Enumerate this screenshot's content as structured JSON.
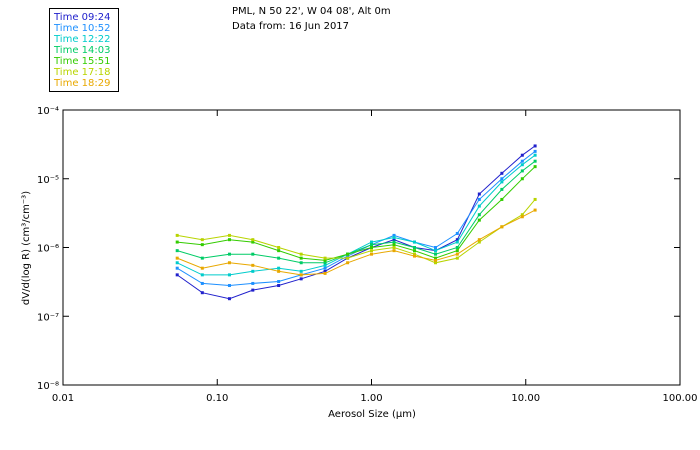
{
  "header": {
    "location": "PML, N 50 22', W 04 08', Alt 0m",
    "date": "Data from: 16 Jun 2017"
  },
  "legend": [
    {
      "label": "Time 09:24",
      "color": "#2020cc"
    },
    {
      "label": "Time 10:52",
      "color": "#1e90ff"
    },
    {
      "label": "Time 12:22",
      "color": "#00cccc"
    },
    {
      "label": "Time 14:03",
      "color": "#00cc66"
    },
    {
      "label": "Time 15:51",
      "color": "#33cc00"
    },
    {
      "label": "Time 17:18",
      "color": "#b8d400"
    },
    {
      "label": "Time 18:29",
      "color": "#e8a800"
    }
  ],
  "chart_data": {
    "type": "line",
    "xscale": "log",
    "yscale": "log",
    "xlim": [
      0.01,
      100
    ],
    "ylim": [
      1e-08,
      0.0001
    ],
    "xlabel": "Aerosol Size (μm)",
    "ylabel": "dV/d(log R) (cm³/cm⁻³)",
    "xticks": [
      {
        "value": 0.01,
        "label": "0.01"
      },
      {
        "value": 0.1,
        "label": "0.10"
      },
      {
        "value": 1,
        "label": "1.00"
      },
      {
        "value": 10,
        "label": "10.00"
      },
      {
        "value": 100,
        "label": "100.00"
      }
    ],
    "yticks": [
      {
        "value": 1e-08,
        "label": "10⁻⁸"
      },
      {
        "value": 1e-07,
        "label": "10⁻⁷"
      },
      {
        "value": 1e-06,
        "label": "10⁻⁶"
      },
      {
        "value": 1e-05,
        "label": "10⁻⁵"
      },
      {
        "value": 0.0001,
        "label": "10⁻⁴"
      }
    ],
    "x": [
      0.055,
      0.08,
      0.12,
      0.17,
      0.25,
      0.35,
      0.5,
      0.7,
      1.0,
      1.4,
      1.9,
      2.6,
      3.6,
      5.0,
      7.0,
      9.5,
      11.5
    ],
    "series": [
      {
        "name": "Time 09:24",
        "color": "#2020cc",
        "values": [
          4e-07,
          2.2e-07,
          1.8e-07,
          2.4e-07,
          2.8e-07,
          3.5e-07,
          4.5e-07,
          7e-07,
          1e-06,
          1.3e-06,
          1e-06,
          9e-07,
          1.3e-06,
          6e-06,
          1.2e-05,
          2.2e-05,
          3e-05
        ]
      },
      {
        "name": "Time 10:52",
        "color": "#1e90ff",
        "values": [
          5e-07,
          3e-07,
          2.8e-07,
          3e-07,
          3.2e-07,
          4e-07,
          5e-07,
          7.5e-07,
          1.1e-06,
          1.5e-06,
          1.2e-06,
          1e-06,
          1.6e-06,
          5e-06,
          1e-05,
          1.8e-05,
          2.5e-05
        ]
      },
      {
        "name": "Time 12:22",
        "color": "#00cccc",
        "values": [
          6e-07,
          4e-07,
          4e-07,
          4.5e-07,
          5e-07,
          4.5e-07,
          5.5e-07,
          8e-07,
          1.2e-06,
          1.4e-06,
          1.2e-06,
          9e-07,
          1.2e-06,
          4e-06,
          9e-06,
          1.6e-05,
          2.2e-05
        ]
      },
      {
        "name": "Time 14:03",
        "color": "#00cc66",
        "values": [
          9e-07,
          7e-07,
          8e-07,
          8e-07,
          7e-07,
          6e-07,
          6e-07,
          8e-07,
          1.1e-06,
          1.2e-06,
          1e-06,
          8e-07,
          1e-06,
          3e-06,
          7e-06,
          1.3e-05,
          1.8e-05
        ]
      },
      {
        "name": "Time 15:51",
        "color": "#33cc00",
        "values": [
          1.2e-06,
          1.1e-06,
          1.3e-06,
          1.2e-06,
          9e-07,
          7e-07,
          6.5e-07,
          8e-07,
          1e-06,
          1.1e-06,
          9e-07,
          7e-07,
          9e-07,
          2.5e-06,
          5e-06,
          1e-05,
          1.5e-05
        ]
      },
      {
        "name": "Time 17:18",
        "color": "#b8d400",
        "values": [
          1.5e-06,
          1.3e-06,
          1.5e-06,
          1.3e-06,
          1e-06,
          8e-07,
          7e-07,
          7e-07,
          9e-07,
          1e-06,
          8e-07,
          6e-07,
          7e-07,
          1.2e-06,
          2e-06,
          3e-06,
          5e-06
        ]
      },
      {
        "name": "Time 18:29",
        "color": "#e8a800",
        "values": [
          7e-07,
          5e-07,
          6e-07,
          5.5e-07,
          4.5e-07,
          4e-07,
          4.2e-07,
          6e-07,
          8e-07,
          9e-07,
          7.5e-07,
          6.5e-07,
          8e-07,
          1.3e-06,
          2e-06,
          2.8e-06,
          3.5e-06
        ]
      }
    ]
  }
}
